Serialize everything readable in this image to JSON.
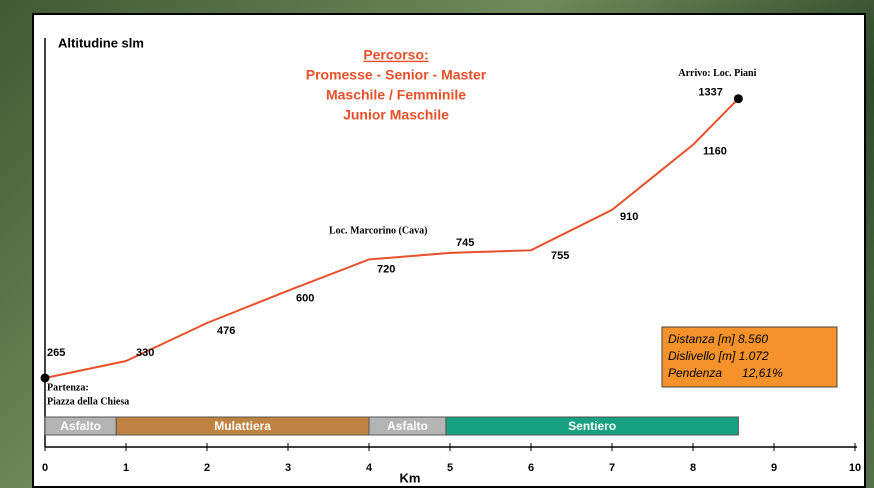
{
  "chart_data": {
    "type": "line",
    "title": "Altitudine slm",
    "x_label": "Km",
    "x": [
      0,
      1,
      2,
      3,
      4,
      5,
      6,
      7,
      8,
      8.56
    ],
    "values": [
      265,
      330,
      476,
      600,
      720,
      745,
      755,
      910,
      1160,
      1337
    ],
    "color": "#e8502a",
    "xlim": [
      0,
      10
    ],
    "xticks": [
      0,
      1,
      2,
      3,
      4,
      5,
      6,
      7,
      8,
      9,
      10
    ],
    "ylim": [
      0,
      1570
    ],
    "route": {
      "heading": "Percorso:",
      "lines": [
        "Promesse - Senior - Master",
        "Maschile / Femminile",
        "Junior Maschile"
      ]
    },
    "annotations": [
      {
        "lines": [
          "Partenza:",
          "Piazza della Chiesa"
        ],
        "point": 0
      },
      {
        "lines": [
          "Loc. Marcorino (Cava)"
        ],
        "point": 4
      },
      {
        "lines": [
          "Arrivo: Loc. Piani"
        ],
        "point": 9
      }
    ],
    "info": [
      "Distanza [m] 8.560",
      "Dislivello [m] 1.072",
      "Pendenza      12,61%"
    ],
    "surfaces": [
      {
        "label": "Asfalto",
        "start": 0,
        "end": 0.88,
        "color": "#b4b4b4"
      },
      {
        "label": "Mulattiera",
        "start": 0.88,
        "end": 4,
        "color": "#bf8240"
      },
      {
        "label": "Asfalto",
        "start": 4,
        "end": 4.95,
        "color": "#b4b4b4"
      },
      {
        "label": "Sentiero",
        "start": 4.95,
        "end": 8.56,
        "color": "#17a082"
      }
    ]
  }
}
